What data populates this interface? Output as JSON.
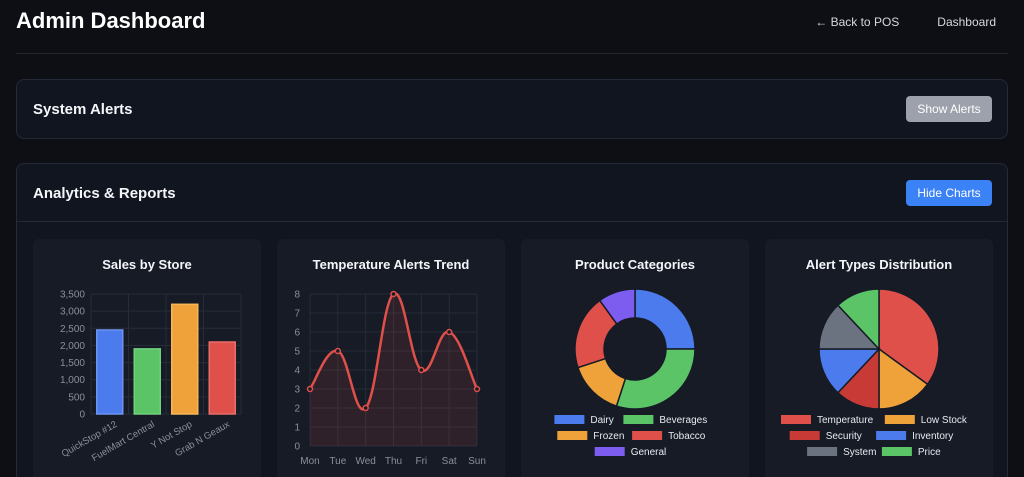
{
  "header": {
    "title": "Admin Dashboard",
    "nav": {
      "back": "← Back to POS",
      "dashboard": "Dashboard"
    }
  },
  "system_alerts": {
    "title": "System Alerts",
    "button": "Show Alerts"
  },
  "analytics": {
    "title": "Analytics & Reports",
    "button": "Hide Charts"
  },
  "colors": {
    "blue": "#4b7bec",
    "green": "#5ac467",
    "orange": "#f0a23a",
    "red": "#e0504a",
    "purple": "#7d5cf0",
    "gray": "#6b7280",
    "darkred": "#c83a36"
  },
  "chart_data": [
    {
      "type": "bar",
      "title": "Sales by Store",
      "categories": [
        "QuickStop #12",
        "FuelMart Central",
        "Y Not Stop",
        "Grab N Geaux"
      ],
      "values": [
        2450,
        1900,
        3200,
        2100
      ],
      "ylim": [
        0,
        3500
      ],
      "yticks": [
        0,
        500,
        1000,
        1500,
        2000,
        2500,
        3000,
        3500
      ],
      "ytick_labels": [
        "0",
        "500",
        "1,000",
        "1,500",
        "2,000",
        "2,500",
        "3,000",
        "3,500"
      ]
    },
    {
      "type": "line",
      "title": "Temperature Alerts Trend",
      "categories": [
        "Mon",
        "Tue",
        "Wed",
        "Thu",
        "Fri",
        "Sat",
        "Sun"
      ],
      "values": [
        3,
        5,
        2,
        8,
        4,
        6,
        3
      ],
      "ylim": [
        0,
        8
      ],
      "yticks": [
        0,
        1,
        2,
        3,
        4,
        5,
        6,
        7,
        8
      ],
      "ytick_labels": [
        "0",
        "1",
        "2",
        "3",
        "4",
        "5",
        "6",
        "7",
        "8"
      ]
    },
    {
      "type": "pie",
      "donut": true,
      "title": "Product Categories",
      "labels": [
        "Dairy",
        "Beverages",
        "Frozen",
        "Tobacco",
        "General"
      ],
      "values": [
        25,
        30,
        15,
        20,
        10
      ]
    },
    {
      "type": "pie",
      "donut": false,
      "title": "Alert Types Distribution",
      "labels": [
        "Temperature",
        "Low Stock",
        "Security",
        "Inventory",
        "System",
        "Price"
      ],
      "values": [
        35,
        15,
        12,
        13,
        13,
        12
      ]
    }
  ]
}
